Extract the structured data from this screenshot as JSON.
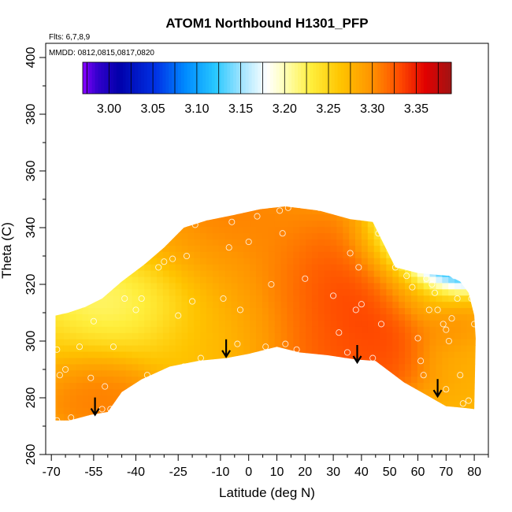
{
  "chart_data": {
    "type": "heatmap",
    "title": "ATOM1 Northbound H1301_PFP",
    "annotations": {
      "flights": "Flts: 6,7,8,9",
      "dates": "MMDD: 0812,0815,0817,0820"
    },
    "xlabel": "Latitude (deg N)",
    "ylabel": "Theta (C)",
    "xlim": [
      -72,
      85
    ],
    "ylim": [
      260,
      405
    ],
    "x_ticks": [
      -70,
      -55,
      -40,
      -25,
      -10,
      0,
      10,
      20,
      30,
      40,
      50,
      60,
      70,
      80
    ],
    "x_minor_ticks": [
      -65,
      -60,
      -50,
      -45,
      -35,
      -30,
      -20,
      -15,
      -5,
      5,
      15,
      25,
      35,
      45,
      55,
      65,
      75,
      85
    ],
    "y_ticks": [
      260,
      280,
      300,
      320,
      340,
      360,
      380,
      400
    ],
    "colorbar": {
      "ticks": [
        3.0,
        3.05,
        3.1,
        3.15,
        3.2,
        3.25,
        3.3,
        3.35
      ],
      "range": [
        2.97,
        3.39
      ],
      "label_texts": [
        "3.00",
        "3.05",
        "3.10",
        "3.15",
        "3.20",
        "3.25",
        "3.30",
        "3.35"
      ]
    },
    "tropopause_arrows": [
      {
        "lat": -54.5,
        "theta": 274
      },
      {
        "lat": -8,
        "theta": 294.5
      },
      {
        "lat": 38.5,
        "theta": 292.5
      },
      {
        "lat": 67,
        "theta": 280.5
      }
    ],
    "field_outline": [
      [
        -68.5,
        272
      ],
      [
        -63.5,
        272
      ],
      [
        -56,
        274
      ],
      [
        -50,
        275
      ],
      [
        -45,
        282
      ],
      [
        -38,
        286.5
      ],
      [
        -28,
        291
      ],
      [
        -18,
        293
      ],
      [
        -8,
        294
      ],
      [
        0,
        295.5
      ],
      [
        10,
        298
      ],
      [
        18,
        296
      ],
      [
        28,
        295
      ],
      [
        38,
        293.5
      ],
      [
        45,
        293
      ],
      [
        55,
        285.5
      ],
      [
        63,
        281
      ],
      [
        70,
        277
      ],
      [
        76,
        276.5
      ],
      [
        80,
        276
      ],
      [
        80.5,
        301
      ],
      [
        80,
        309
      ],
      [
        78,
        317
      ],
      [
        75,
        321
      ],
      [
        71,
        323
      ],
      [
        60,
        324
      ],
      [
        52,
        326
      ],
      [
        46,
        338
      ],
      [
        44,
        342
      ],
      [
        36,
        343
      ],
      [
        25,
        346
      ],
      [
        13,
        347.5
      ],
      [
        4,
        346.5
      ],
      [
        -5,
        344.5
      ],
      [
        -15,
        342.5
      ],
      [
        -23,
        340
      ],
      [
        -30,
        333
      ],
      [
        -37,
        327
      ],
      [
        -45,
        321
      ],
      [
        -52,
        315
      ],
      [
        -58,
        312
      ],
      [
        -64,
        310
      ],
      [
        -68.5,
        309
      ]
    ],
    "value_blobs": [
      {
        "lat": -55,
        "theta": 285,
        "value": 3.32,
        "spread": 5
      },
      {
        "lat": -50,
        "theta": 283,
        "value": 3.31,
        "spread": 4
      },
      {
        "lat": -50,
        "theta": 312,
        "value": 3.2,
        "spread": 6
      },
      {
        "lat": -43,
        "theta": 315,
        "value": 3.19,
        "spread": 6
      },
      {
        "lat": -10,
        "theta": 335,
        "value": 3.32,
        "spread": 7
      },
      {
        "lat": 20,
        "theta": 315,
        "value": 3.33,
        "spread": 7
      },
      {
        "lat": 30,
        "theta": 325,
        "value": 3.34,
        "spread": 6
      },
      {
        "lat": 35,
        "theta": 305,
        "value": 3.34,
        "spread": 7
      },
      {
        "lat": 40,
        "theta": 315,
        "value": 3.35,
        "spread": 6
      },
      {
        "lat": 28,
        "theta": 298,
        "value": 3.33,
        "spread": 6
      },
      {
        "lat": 62,
        "theta": 318,
        "value": 3.24,
        "spread": 5
      },
      {
        "lat": 55,
        "theta": 330,
        "value": 3.22,
        "spread": 5
      },
      {
        "lat": 66,
        "theta": 336,
        "value": 3.11,
        "spread": 4
      },
      {
        "lat": 71,
        "theta": 332,
        "value": 3.0,
        "spread": 4
      },
      {
        "lat": 71,
        "theta": 326,
        "value": 3.02,
        "spread": 3
      },
      {
        "lat": 60,
        "theta": 342,
        "value": 3.19,
        "spread": 3
      },
      {
        "lat": 73,
        "theta": 305,
        "value": 3.31,
        "spread": 3
      },
      {
        "lat": 80,
        "theta": 300,
        "value": 3.28,
        "spread": 5
      },
      {
        "lat": -20,
        "theta": 305,
        "value": 3.26,
        "spread": 8
      },
      {
        "lat": 0,
        "theta": 305,
        "value": 3.28,
        "spread": 8
      },
      {
        "lat": -60,
        "theta": 300,
        "value": 3.26,
        "spread": 8
      },
      {
        "lat": -30,
        "theta": 325,
        "value": 3.27,
        "spread": 8
      },
      {
        "lat": 5,
        "theta": 325,
        "value": 3.29,
        "spread": 8
      }
    ],
    "sample_points": [
      [
        -68,
        297
      ],
      [
        -67,
        288
      ],
      [
        -65,
        290
      ],
      [
        -63,
        273
      ],
      [
        -60,
        298
      ],
      [
        -55,
        307
      ],
      [
        -52,
        276
      ],
      [
        -49,
        276
      ],
      [
        -56,
        287
      ],
      [
        -51,
        284
      ],
      [
        -48,
        298
      ],
      [
        -44,
        315
      ],
      [
        -40,
        311
      ],
      [
        -38,
        315
      ],
      [
        -36,
        288
      ],
      [
        -32,
        326
      ],
      [
        -30,
        328
      ],
      [
        -27,
        329
      ],
      [
        -25,
        309
      ],
      [
        -23,
        291
      ],
      [
        -20,
        314
      ],
      [
        -17,
        294
      ],
      [
        -22,
        330
      ],
      [
        -19,
        341
      ],
      [
        -9,
        315
      ],
      [
        -7,
        333
      ],
      [
        -6,
        342
      ],
      [
        -4,
        299
      ],
      [
        -3,
        311
      ],
      [
        0,
        335
      ],
      [
        3,
        344
      ],
      [
        6,
        298
      ],
      [
        8,
        320
      ],
      [
        11,
        346
      ],
      [
        12,
        338
      ],
      [
        13,
        299
      ],
      [
        14,
        347
      ],
      [
        17,
        297
      ],
      [
        20,
        322
      ],
      [
        22,
        348
      ],
      [
        25,
        347
      ],
      [
        30,
        316
      ],
      [
        32,
        303
      ],
      [
        33,
        345
      ],
      [
        35,
        296
      ],
      [
        36,
        331
      ],
      [
        38,
        311
      ],
      [
        39,
        326
      ],
      [
        40,
        313
      ],
      [
        44,
        294
      ],
      [
        46,
        338
      ],
      [
        47,
        306
      ],
      [
        52,
        326
      ],
      [
        56,
        323
      ],
      [
        58,
        319
      ],
      [
        60,
        301
      ],
      [
        61,
        293
      ],
      [
        62,
        288
      ],
      [
        63,
        322
      ],
      [
        64,
        311
      ],
      [
        65,
        320
      ],
      [
        66,
        317
      ],
      [
        67,
        311
      ],
      [
        68,
        330
      ],
      [
        69,
        306
      ],
      [
        70,
        304
      ],
      [
        71,
        300
      ],
      [
        72,
        308
      ],
      [
        73,
        323
      ],
      [
        74,
        315
      ],
      [
        75,
        288
      ],
      [
        76,
        278
      ],
      [
        78,
        279
      ],
      [
        79,
        315
      ],
      [
        80,
        306
      ],
      [
        64,
        276
      ],
      [
        70,
        283
      ],
      [
        -68,
        272
      ]
    ]
  }
}
